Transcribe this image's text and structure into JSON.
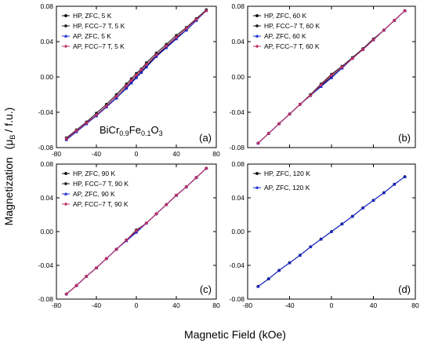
{
  "figure": {
    "xlabel": "Magnetic Field (kOe)",
    "ylabel_left": "Magnetization",
    "ylabel_mu": "μ",
    "ylabel_sub": "B",
    "ylabel_rest": "/ f.u.)",
    "ylabel_paren": "("
  },
  "colors": {
    "HP_ZFC": "#000000",
    "HP_FCC": "#222222",
    "AP_ZFC": "#1a2ad6",
    "AP_FCC": "#c0306a"
  },
  "chart_data": [
    {
      "type": "line",
      "panel_label": "(a)",
      "annotation": "BiCr0.9Fe0.1O3",
      "annotation_parts": [
        "BiCr",
        "0.9",
        "Fe",
        "0.1",
        "O",
        "3"
      ],
      "xlim": [
        -80,
        80
      ],
      "ylim": [
        -0.08,
        0.08
      ],
      "xticks": [
        "-80",
        "-40",
        "0",
        "40",
        "80"
      ],
      "yticks": [
        "-0.08",
        "-0.04",
        "0.00",
        "0.04",
        "0.08"
      ],
      "legend_position": "top-left",
      "series": [
        {
          "name": "HP, ZFC, 5 K",
          "color": "#000000",
          "marker": "circle",
          "x": [
            -70,
            -60,
            -50,
            -40,
            -30,
            -20,
            -10,
            -5,
            0,
            5,
            10,
            20,
            30,
            40,
            50,
            60,
            70
          ],
          "y": [
            -0.071,
            -0.062,
            -0.053,
            -0.044,
            -0.034,
            -0.024,
            -0.012,
            -0.006,
            0.0,
            0.006,
            0.012,
            0.024,
            0.034,
            0.044,
            0.053,
            0.064,
            0.076
          ]
        },
        {
          "name": "HP, FCC–7 T, 5 K",
          "color": "#222222",
          "marker": "circle",
          "x": [
            -70,
            -60,
            -50,
            -40,
            -30,
            -20,
            -10,
            -5,
            0,
            5,
            10,
            20,
            30,
            40,
            50,
            60,
            70
          ],
          "y": [
            -0.069,
            -0.06,
            -0.051,
            -0.041,
            -0.031,
            -0.02,
            -0.008,
            -0.002,
            0.004,
            0.009,
            0.016,
            0.027,
            0.037,
            0.047,
            0.056,
            0.066,
            0.076
          ]
        },
        {
          "name": "AP, ZFC, 5 K",
          "color": "#1a2ad6",
          "marker": "triangle",
          "x": [
            -70,
            -60,
            -50,
            -40,
            -30,
            -20,
            -10,
            -5,
            0,
            5,
            10,
            20,
            30,
            40,
            50,
            60,
            70
          ],
          "y": [
            -0.071,
            -0.062,
            -0.053,
            -0.044,
            -0.034,
            -0.024,
            -0.013,
            -0.007,
            -0.001,
            0.005,
            0.011,
            0.023,
            0.033,
            0.043,
            0.053,
            0.064,
            0.075
          ]
        },
        {
          "name": "AP, FCC–7 T, 5 K",
          "color": "#c0306a",
          "marker": "diamond",
          "x": [
            -70,
            -60,
            -50,
            -40,
            -30,
            -20,
            -10,
            -5,
            0,
            5,
            10,
            20,
            30,
            40,
            50,
            60,
            70
          ],
          "y": [
            -0.07,
            -0.061,
            -0.052,
            -0.043,
            -0.033,
            -0.022,
            -0.01,
            -0.004,
            0.002,
            0.008,
            0.014,
            0.025,
            0.035,
            0.045,
            0.055,
            0.065,
            0.075
          ]
        }
      ]
    },
    {
      "type": "line",
      "panel_label": "(b)",
      "xlim": [
        -80,
        80
      ],
      "ylim": [
        -0.08,
        0.08
      ],
      "xticks": [],
      "yticks": [
        "-0.08",
        "-0.04",
        "0.00",
        "0.04",
        "0.08"
      ],
      "legend_position": "top-left",
      "series": [
        {
          "name": "HP, ZFC, 60 K",
          "color": "#000000",
          "marker": "circle",
          "x": [
            -70,
            -60,
            -50,
            -40,
            -30,
            -20,
            -10,
            0,
            10,
            20,
            30,
            40,
            50,
            60,
            70
          ],
          "y": [
            -0.075,
            -0.064,
            -0.053,
            -0.042,
            -0.031,
            -0.021,
            -0.01,
            0.0,
            0.01,
            0.021,
            0.031,
            0.042,
            0.053,
            0.064,
            0.075
          ]
        },
        {
          "name": "HP, FCC–7 T, 60 K",
          "color": "#222222",
          "marker": "circle",
          "x": [
            -70,
            -60,
            -50,
            -40,
            -30,
            -20,
            -10,
            0,
            10,
            20,
            30,
            40,
            50,
            60,
            70
          ],
          "y": [
            -0.075,
            -0.064,
            -0.053,
            -0.042,
            -0.031,
            -0.02,
            -0.008,
            0.003,
            0.012,
            0.022,
            0.032,
            0.043,
            0.053,
            0.064,
            0.075
          ]
        },
        {
          "name": "AP, ZFC, 60 K",
          "color": "#1a2ad6",
          "marker": "triangle",
          "x": [
            -70,
            -60,
            -50,
            -40,
            -30,
            -20,
            -10,
            0,
            10,
            20,
            30,
            40,
            50,
            60,
            70
          ],
          "y": [
            -0.075,
            -0.064,
            -0.053,
            -0.042,
            -0.031,
            -0.021,
            -0.011,
            -0.001,
            0.01,
            0.021,
            0.031,
            0.042,
            0.053,
            0.064,
            0.075
          ]
        },
        {
          "name": "AP, FCC–7 T, 60 K",
          "color": "#c0306a",
          "marker": "diamond",
          "x": [
            -70,
            -60,
            -50,
            -40,
            -30,
            -20,
            -10,
            0,
            10,
            20,
            30,
            40,
            50,
            60,
            70
          ],
          "y": [
            -0.075,
            -0.064,
            -0.053,
            -0.042,
            -0.031,
            -0.021,
            -0.009,
            0.002,
            0.011,
            0.021,
            0.031,
            0.042,
            0.053,
            0.064,
            0.075
          ]
        }
      ]
    },
    {
      "type": "line",
      "panel_label": "(c)",
      "xlim": [
        -80,
        80
      ],
      "ylim": [
        -0.08,
        0.08
      ],
      "xticks": [
        "-80",
        "-40",
        "0",
        "40",
        "80"
      ],
      "yticks": [
        "-0.08",
        "-0.04",
        "0.00",
        "0.04",
        "0.08"
      ],
      "legend_position": "top-left",
      "series": [
        {
          "name": "HP, ZFC, 90 K",
          "color": "#000000",
          "marker": "circle",
          "x": [
            -70,
            -60,
            -50,
            -40,
            -30,
            -20,
            -10,
            0,
            10,
            20,
            30,
            40,
            50,
            60,
            70
          ],
          "y": [
            -0.074,
            -0.064,
            -0.053,
            -0.043,
            -0.032,
            -0.021,
            -0.01,
            0.0,
            0.01,
            0.021,
            0.032,
            0.043,
            0.053,
            0.064,
            0.075
          ]
        },
        {
          "name": "HP, FCC–7 T, 90 K",
          "color": "#222222",
          "marker": "circle",
          "x": [
            -70,
            -60,
            -50,
            -40,
            -30,
            -20,
            -10,
            0,
            10,
            20,
            30,
            40,
            50,
            60,
            70
          ],
          "y": [
            -0.074,
            -0.064,
            -0.053,
            -0.043,
            -0.032,
            -0.021,
            -0.01,
            0.002,
            0.01,
            0.021,
            0.032,
            0.043,
            0.053,
            0.064,
            0.075
          ]
        },
        {
          "name": "AP, ZFC, 90 K",
          "color": "#1a2ad6",
          "marker": "triangle",
          "x": [
            -70,
            -60,
            -50,
            -40,
            -30,
            -20,
            -10,
            0,
            10,
            20,
            30,
            40,
            50,
            60,
            70
          ],
          "y": [
            -0.074,
            -0.064,
            -0.053,
            -0.043,
            -0.032,
            -0.021,
            -0.011,
            -0.001,
            0.01,
            0.021,
            0.032,
            0.043,
            0.053,
            0.064,
            0.075
          ]
        },
        {
          "name": "AP, FCC–7 T, 90 K",
          "color": "#c0306a",
          "marker": "diamond",
          "x": [
            -70,
            -60,
            -50,
            -40,
            -30,
            -20,
            -10,
            0,
            10,
            20,
            30,
            40,
            50,
            60,
            70
          ],
          "y": [
            -0.074,
            -0.064,
            -0.053,
            -0.043,
            -0.032,
            -0.021,
            -0.01,
            0.001,
            0.01,
            0.021,
            0.032,
            0.043,
            0.053,
            0.064,
            0.075
          ]
        }
      ]
    },
    {
      "type": "line",
      "panel_label": "(d)",
      "xlim": [
        -80,
        80
      ],
      "ylim": [
        -0.08,
        0.08
      ],
      "xticks": [
        "-80",
        "-40",
        "0",
        "40",
        "80"
      ],
      "yticks": [
        "-0.08",
        "-0.04",
        "0.00",
        "0.04",
        "0.08"
      ],
      "legend_position": "top-left",
      "series": [
        {
          "name": "HP, ZFC, 120 K",
          "color": "#000000",
          "marker": "circle",
          "x": [
            -70,
            -60,
            -50,
            -40,
            -30,
            -20,
            -10,
            0,
            10,
            20,
            30,
            40,
            50,
            60,
            70
          ],
          "y": [
            -0.065,
            -0.056,
            -0.046,
            -0.037,
            -0.028,
            -0.018,
            -0.009,
            0.0,
            0.009,
            0.018,
            0.028,
            0.037,
            0.046,
            0.056,
            0.065
          ]
        },
        {
          "name": "AP, ZFC, 120 K",
          "color": "#1a2ad6",
          "marker": "triangle",
          "x": [
            -70,
            -60,
            -50,
            -40,
            -30,
            -20,
            -10,
            0,
            10,
            20,
            30,
            40,
            50,
            60,
            70
          ],
          "y": [
            -0.065,
            -0.056,
            -0.046,
            -0.037,
            -0.028,
            -0.018,
            -0.009,
            0.0,
            0.009,
            0.018,
            0.028,
            0.037,
            0.046,
            0.056,
            0.065
          ]
        }
      ]
    }
  ]
}
